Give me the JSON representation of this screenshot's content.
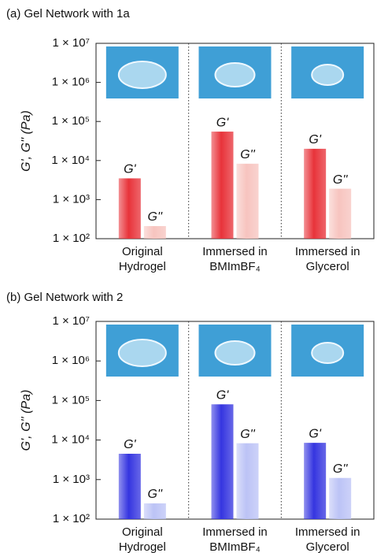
{
  "chart_data": [
    {
      "type": "bar",
      "title": "(a) Gel Network with 1a",
      "y_label": "G', G'' (Pa)",
      "yscale": "log",
      "categories": [
        [
          "Original",
          "Hydrogel"
        ],
        [
          "Immersed in",
          "BMImBF₄"
        ],
        [
          "Immersed in",
          "Glycerol"
        ]
      ],
      "series": [
        {
          "name": "G'",
          "color": "#e8333a",
          "values": [
            3500,
            55000,
            20000
          ]
        },
        {
          "name": "G''",
          "color": "#f7c4bf",
          "values": [
            210,
            8300,
            1900
          ]
        }
      ],
      "ylim": [
        100,
        10000000
      ],
      "yticks": [
        {
          "value": 100,
          "label": "1 × 10²"
        },
        {
          "value": 1000,
          "label": "1 × 10³"
        },
        {
          "value": 10000,
          "label": "1 × 10⁴"
        },
        {
          "value": 100000,
          "label": "1 × 10⁵"
        },
        {
          "value": 1000000,
          "label": "1 × 10⁶"
        },
        {
          "value": 10000000,
          "label": "1 × 10⁷"
        }
      ]
    },
    {
      "type": "bar",
      "title": "(b) Gel Network with 2",
      "y_label": "G', G'' (Pa)",
      "yscale": "log",
      "categories": [
        [
          "Original",
          "Hydrogel"
        ],
        [
          "Immersed in",
          "BMImBF₄"
        ],
        [
          "Immersed in",
          "Glycerol"
        ]
      ],
      "series": [
        {
          "name": "G'",
          "color": "#3535e0",
          "values": [
            4500,
            80000,
            8500
          ]
        },
        {
          "name": "G''",
          "color": "#bcc3f6",
          "values": [
            250,
            8300,
            1100
          ]
        }
      ],
      "ylim": [
        100,
        10000000
      ],
      "yticks": [
        {
          "value": 100,
          "label": "1 × 10²"
        },
        {
          "value": 1000,
          "label": "1 × 10³"
        },
        {
          "value": 10000,
          "label": "1 × 10⁴"
        },
        {
          "value": 100000,
          "label": "1 × 10⁵"
        },
        {
          "value": 1000000,
          "label": "1 × 10⁶"
        },
        {
          "value": 10000000,
          "label": "1 × 10⁷"
        }
      ]
    }
  ]
}
